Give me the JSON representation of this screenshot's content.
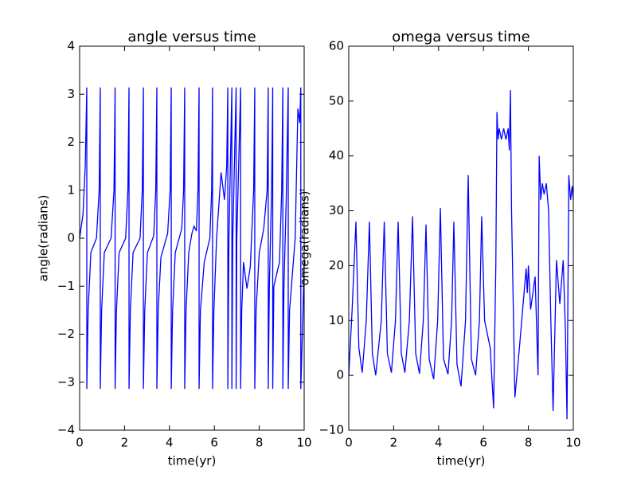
{
  "chart_data": [
    {
      "type": "line",
      "title": "angle versus time",
      "xlabel": "time(yr)",
      "ylabel": "angle(radians)",
      "color": "#0000ff",
      "xlim": [
        0,
        10
      ],
      "ylim": [
        -4,
        4
      ],
      "xticks": [
        0,
        2,
        4,
        6,
        8,
        10
      ],
      "yticks": [
        {
          "value": -4,
          "label": "−4"
        },
        {
          "value": -3,
          "label": "−3"
        },
        {
          "value": -2,
          "label": "−2"
        },
        {
          "value": -1,
          "label": "−1"
        },
        0,
        1,
        2,
        3,
        4
      ],
      "x": [
        0,
        0.15,
        0.25,
        0.32,
        0.32,
        0.38,
        0.5,
        0.75,
        0.87,
        0.92,
        0.92,
        0.98,
        1.1,
        1.4,
        1.53,
        1.58,
        1.58,
        1.64,
        1.76,
        2.05,
        2.15,
        2.2,
        2.2,
        2.26,
        2.38,
        2.69,
        2.79,
        2.84,
        2.84,
        2.9,
        3.02,
        3.3,
        3.39,
        3.44,
        3.44,
        3.5,
        3.62,
        3.92,
        4.03,
        4.08,
        4.08,
        4.14,
        4.26,
        4.55,
        4.63,
        4.68,
        4.68,
        4.74,
        4.86,
        5.0,
        5.1,
        5.2,
        5.27,
        5.32,
        5.32,
        5.38,
        5.55,
        5.8,
        5.88,
        5.92,
        5.92,
        5.98,
        6.1,
        6.3,
        6.45,
        6.55,
        6.6,
        6.6,
        6.65,
        6.78,
        6.78,
        6.82,
        6.97,
        6.97,
        7.0,
        7.17,
        7.17,
        7.22,
        7.3,
        7.45,
        7.6,
        7.75,
        7.8,
        7.8,
        7.86,
        8.0,
        8.2,
        8.35,
        8.4,
        8.4,
        8.45,
        8.55,
        8.6,
        8.6,
        8.65,
        8.9,
        9.0,
        9.05,
        9.05,
        9.1,
        9.2,
        9.29,
        9.29,
        9.35,
        9.6,
        9.72,
        9.8,
        9.85,
        9.85,
        9.95,
        10
      ],
      "values": [
        0,
        0.5,
        1.5,
        3.14,
        -3.14,
        -1.5,
        -0.3,
        0,
        1,
        3.14,
        -3.14,
        -1.5,
        -0.3,
        0,
        1,
        3.14,
        -3.14,
        -1.5,
        -0.3,
        0,
        1,
        3.14,
        -3.14,
        -1.5,
        -0.3,
        0,
        1,
        3.14,
        -3.14,
        -1.5,
        -0.3,
        0.05,
        1,
        3.14,
        -3.14,
        -1.5,
        -0.4,
        0.1,
        1,
        3.14,
        -3.14,
        -1.5,
        -0.3,
        0.2,
        1,
        3.14,
        -3.14,
        -1.5,
        -0.3,
        0.1,
        0.25,
        0.15,
        1,
        3.14,
        -3.14,
        -1.5,
        -0.5,
        0,
        1,
        3.14,
        -3.14,
        -1.5,
        0,
        1.37,
        0.8,
        1.5,
        3.14,
        -3.14,
        0,
        3.14,
        -3.14,
        0,
        3.14,
        -3.14,
        0,
        3.14,
        -3.14,
        -1.5,
        -0.5,
        -1.05,
        -0.6,
        1,
        3.14,
        -3.14,
        -1.5,
        -0.3,
        0.2,
        1,
        3.14,
        -3.14,
        -1,
        1,
        3.14,
        -3.14,
        -1,
        -0.5,
        1,
        3.14,
        -3.14,
        -1,
        0.8,
        3.14,
        -3.14,
        -1.5,
        0,
        2.7,
        2.4,
        3.14,
        -3.14,
        -1.5,
        -0.5
      ]
    },
    {
      "type": "line",
      "title": "omega versus time",
      "xlabel": "time(yr)",
      "ylabel": "omega(radians)",
      "color": "#0000ff",
      "xlim": [
        0,
        10
      ],
      "ylim": [
        -10,
        60
      ],
      "xticks": [
        0,
        2,
        4,
        6,
        8,
        10
      ],
      "yticks": [
        {
          "value": -10,
          "label": "−10"
        },
        0,
        10,
        20,
        30,
        40,
        50,
        60
      ],
      "x": [
        0,
        0.15,
        0.32,
        0.45,
        0.6,
        0.78,
        0.92,
        1.05,
        1.2,
        1.45,
        1.58,
        1.72,
        1.9,
        2.08,
        2.2,
        2.34,
        2.5,
        2.7,
        2.84,
        2.98,
        3.15,
        3.32,
        3.44,
        3.58,
        3.78,
        3.96,
        4.08,
        4.22,
        4.42,
        4.58,
        4.68,
        4.82,
        5.0,
        5.2,
        5.32,
        5.46,
        5.65,
        5.82,
        5.92,
        6.05,
        6.3,
        6.45,
        6.55,
        6.6,
        6.65,
        6.7,
        6.8,
        6.9,
        7.0,
        7.1,
        7.15,
        7.2,
        7.25,
        7.4,
        7.6,
        7.9,
        7.95,
        8.0,
        8.1,
        8.3,
        8.43,
        8.48,
        8.55,
        8.62,
        8.7,
        8.8,
        8.9,
        9.0,
        9.1,
        9.25,
        9.4,
        9.55,
        9.65,
        9.72,
        9.8,
        9.88,
        9.95,
        10
      ],
      "values": [
        0,
        12,
        28,
        5,
        0.5,
        10,
        28,
        4,
        0,
        10,
        28,
        4,
        0.5,
        10,
        28,
        4,
        0.5,
        10,
        29,
        4,
        0.3,
        10,
        27.5,
        3,
        -0.7,
        10,
        30.5,
        3,
        0.2,
        10,
        28,
        2,
        -2,
        10,
        36.5,
        3,
        0,
        10,
        29,
        10,
        5,
        -6,
        20,
        48,
        43,
        45,
        43,
        45,
        43,
        45,
        41,
        52,
        30,
        -4,
        5,
        19.5,
        15,
        20,
        12,
        18,
        0,
        40,
        32,
        35,
        33,
        35,
        30,
        10,
        -6.5,
        21,
        13,
        21,
        8,
        -8,
        36.5,
        32,
        34.5,
        32
      ]
    }
  ]
}
